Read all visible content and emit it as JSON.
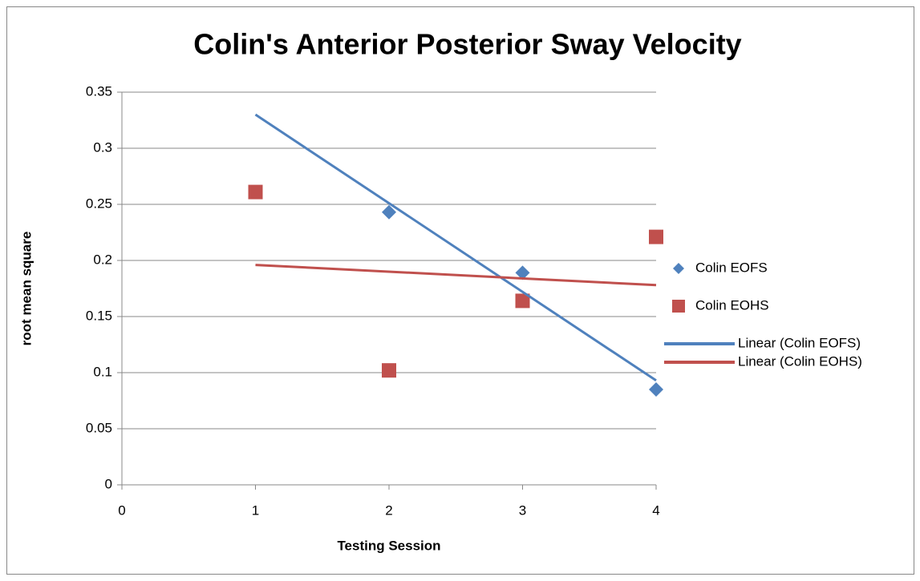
{
  "chart_data": {
    "type": "scatter",
    "title": "Colin's Anterior Posterior Sway Velocity",
    "x_label": "Testing Session",
    "y_label": "root mean square",
    "xlim": [
      0,
      4
    ],
    "xticks": [
      0,
      1,
      2,
      3,
      4
    ],
    "ylim": [
      0,
      0.35
    ],
    "yticks": [
      0,
      0.05,
      0.1,
      0.15,
      0.2,
      0.25,
      0.3,
      0.35
    ],
    "grid": true,
    "legend": "right",
    "series": [
      {
        "name": "Colin EOFS",
        "color": "#4f81bd",
        "mode": "markers",
        "marker": "diamond",
        "x": [
          2,
          3,
          4
        ],
        "values": [
          0.243,
          0.189,
          0.085
        ]
      },
      {
        "name": "Colin EOHS",
        "color": "#c0504d",
        "mode": "markers",
        "marker": "square",
        "x": [
          1,
          2,
          3,
          4
        ],
        "values": [
          0.261,
          0.102,
          0.164,
          0.221
        ]
      },
      {
        "name": "Linear (Colin EOFS)",
        "color": "#4f81bd",
        "mode": "line",
        "x": [
          1,
          4
        ],
        "values": [
          0.33,
          0.093
        ]
      },
      {
        "name": "Linear (Colin EOHS)",
        "color": "#c0504d",
        "mode": "line",
        "x": [
          1,
          4
        ],
        "values": [
          0.196,
          0.178
        ]
      }
    ]
  }
}
